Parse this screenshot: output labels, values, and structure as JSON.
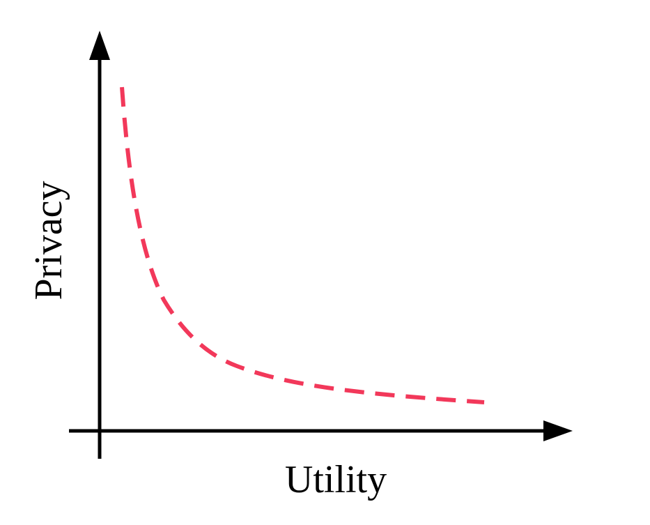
{
  "axes": {
    "x_label": "Utility",
    "y_label": "Privacy",
    "color": "#000000"
  },
  "curve": {
    "description_type": "tradeoff-curve",
    "style": "dashed",
    "color": "#f2385a"
  }
}
